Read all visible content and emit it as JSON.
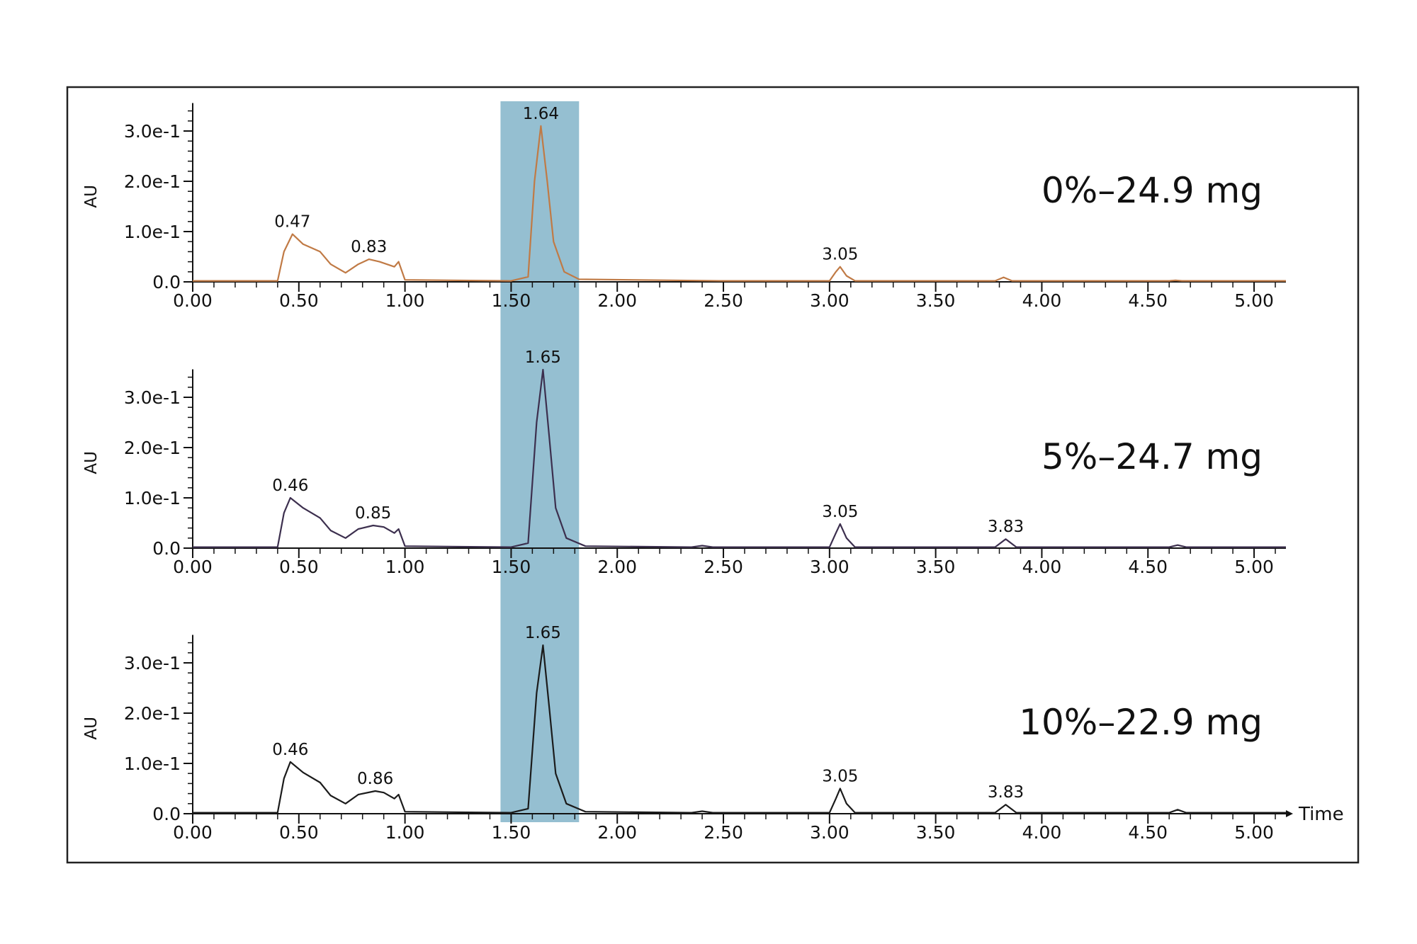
{
  "chart_data": {
    "type": "line",
    "highlight": {
      "x_range": [
        1.45,
        1.82
      ],
      "color": "#8fbccf"
    },
    "x_axis": {
      "ticks": [
        "0.00",
        "0.50",
        "1.00",
        "1.50",
        "2.00",
        "2.50",
        "3.00",
        "3.50",
        "4.00",
        "4.50",
        "5.00"
      ],
      "xlim": [
        0.0,
        5.15
      ],
      "name": "Time"
    },
    "y_axis": {
      "ticks": [
        "0.0",
        "1.0e-1",
        "2.0e-1",
        "3.0e-1"
      ],
      "ylim": [
        0.0,
        0.35
      ],
      "label": "AU"
    },
    "panels": [
      {
        "title": "0%–24.9 mg",
        "color": "#c07a45",
        "peaks": [
          {
            "x": 0.47,
            "label": "0.47",
            "height": 0.095
          },
          {
            "x": 0.83,
            "label": "0.83",
            "height": 0.045
          },
          {
            "x": 1.64,
            "label": "1.64",
            "height": 0.31
          },
          {
            "x": 3.05,
            "label": "3.05",
            "height": 0.03
          }
        ],
        "x": [
          0.0,
          0.4,
          0.43,
          0.47,
          0.52,
          0.6,
          0.65,
          0.72,
          0.78,
          0.83,
          0.88,
          0.95,
          0.97,
          1.0,
          1.5,
          1.58,
          1.61,
          1.64,
          1.67,
          1.7,
          1.75,
          1.82,
          2.5,
          3.0,
          3.03,
          3.05,
          3.08,
          3.12,
          3.78,
          3.82,
          3.86,
          4.6,
          4.63,
          4.66,
          5.15
        ],
        "y": [
          0.002,
          0.002,
          0.06,
          0.095,
          0.075,
          0.06,
          0.035,
          0.018,
          0.035,
          0.045,
          0.04,
          0.03,
          0.04,
          0.004,
          0.002,
          0.01,
          0.2,
          0.31,
          0.2,
          0.08,
          0.02,
          0.005,
          0.002,
          0.002,
          0.02,
          0.03,
          0.012,
          0.002,
          0.002,
          0.009,
          0.002,
          0.002,
          0.003,
          0.002,
          0.002
        ]
      },
      {
        "title": "5%–24.7 mg",
        "color": "#3c2f4e",
        "peaks": [
          {
            "x": 0.46,
            "label": "0.46",
            "height": 0.1
          },
          {
            "x": 0.85,
            "label": "0.85",
            "height": 0.045
          },
          {
            "x": 1.65,
            "label": "1.65",
            "height": 0.355
          },
          {
            "x": 3.05,
            "label": "3.05",
            "height": 0.048
          },
          {
            "x": 3.83,
            "label": "3.83",
            "height": 0.018
          }
        ],
        "x": [
          0.0,
          0.4,
          0.43,
          0.46,
          0.52,
          0.6,
          0.65,
          0.72,
          0.78,
          0.85,
          0.9,
          0.95,
          0.97,
          1.0,
          1.5,
          1.58,
          1.62,
          1.65,
          1.68,
          1.71,
          1.76,
          1.85,
          2.35,
          2.4,
          2.45,
          3.0,
          3.03,
          3.05,
          3.08,
          3.12,
          3.78,
          3.83,
          3.88,
          4.6,
          4.64,
          4.68,
          5.15
        ],
        "y": [
          0.002,
          0.002,
          0.07,
          0.1,
          0.08,
          0.06,
          0.035,
          0.02,
          0.038,
          0.045,
          0.042,
          0.03,
          0.038,
          0.004,
          0.002,
          0.01,
          0.25,
          0.355,
          0.22,
          0.08,
          0.02,
          0.004,
          0.002,
          0.005,
          0.002,
          0.002,
          0.03,
          0.048,
          0.02,
          0.002,
          0.002,
          0.018,
          0.002,
          0.002,
          0.006,
          0.002,
          0.002
        ]
      },
      {
        "title": "10%–22.9 mg",
        "color": "#1b1b1b",
        "peaks": [
          {
            "x": 0.46,
            "label": "0.46",
            "height": 0.103
          },
          {
            "x": 0.86,
            "label": "0.86",
            "height": 0.045
          },
          {
            "x": 1.65,
            "label": "1.65",
            "height": 0.335
          },
          {
            "x": 3.05,
            "label": "3.05",
            "height": 0.05
          },
          {
            "x": 3.83,
            "label": "3.83",
            "height": 0.018
          }
        ],
        "x": [
          0.0,
          0.4,
          0.43,
          0.46,
          0.52,
          0.6,
          0.65,
          0.72,
          0.78,
          0.86,
          0.9,
          0.95,
          0.97,
          1.0,
          1.5,
          1.58,
          1.62,
          1.65,
          1.68,
          1.71,
          1.76,
          1.85,
          2.35,
          2.4,
          2.45,
          3.0,
          3.03,
          3.05,
          3.08,
          3.12,
          3.78,
          3.83,
          3.88,
          4.6,
          4.64,
          4.68,
          5.15
        ],
        "y": [
          0.002,
          0.002,
          0.07,
          0.103,
          0.082,
          0.062,
          0.036,
          0.02,
          0.038,
          0.045,
          0.042,
          0.03,
          0.038,
          0.004,
          0.002,
          0.01,
          0.24,
          0.335,
          0.21,
          0.08,
          0.02,
          0.004,
          0.002,
          0.005,
          0.002,
          0.002,
          0.03,
          0.05,
          0.02,
          0.002,
          0.002,
          0.018,
          0.002,
          0.002,
          0.008,
          0.002,
          0.002
        ]
      }
    ]
  }
}
